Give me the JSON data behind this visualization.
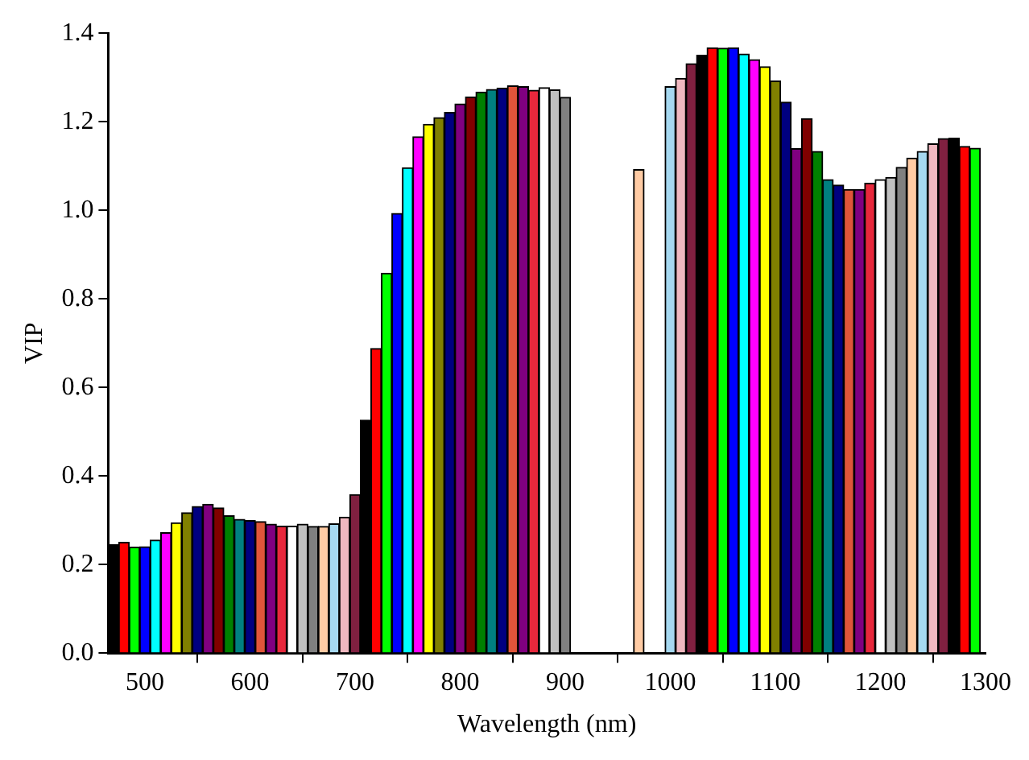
{
  "chart_data": {
    "type": "bar",
    "xlabel": "Wavelength (nm)",
    "ylabel": "VIP",
    "x": [
      470,
      480,
      490,
      500,
      510,
      520,
      530,
      540,
      550,
      560,
      570,
      580,
      590,
      600,
      610,
      620,
      630,
      640,
      650,
      660,
      670,
      680,
      690,
      700,
      710,
      720,
      730,
      740,
      750,
      760,
      770,
      780,
      790,
      800,
      810,
      820,
      830,
      840,
      850,
      860,
      870,
      880,
      890,
      900,
      970,
      1000,
      1010,
      1020,
      1030,
      1040,
      1050,
      1060,
      1070,
      1080,
      1090,
      1100,
      1110,
      1120,
      1130,
      1140,
      1150,
      1160,
      1170,
      1180,
      1190,
      1200,
      1210,
      1220,
      1230,
      1240,
      1250,
      1260,
      1270,
      1280,
      1290
    ],
    "values": [
      0.245,
      0.25,
      0.239,
      0.24,
      0.255,
      0.272,
      0.294,
      0.317,
      0.331,
      0.336,
      0.328,
      0.31,
      0.302,
      0.299,
      0.297,
      0.291,
      0.287,
      0.287,
      0.291,
      0.286,
      0.286,
      0.292,
      0.307,
      0.358,
      0.526,
      0.688,
      0.858,
      0.993,
      1.096,
      1.166,
      1.194,
      1.209,
      1.221,
      1.24,
      1.256,
      1.267,
      1.273,
      1.276,
      1.281,
      1.279,
      1.271,
      1.277,
      1.272,
      1.255,
      1.092,
      1.279,
      1.298,
      1.331,
      1.35,
      1.367,
      1.366,
      1.367,
      1.353,
      1.34,
      1.324,
      1.292,
      1.244,
      1.139,
      1.207,
      1.133,
      1.069,
      1.057,
      1.047,
      1.047,
      1.061,
      1.069,
      1.074,
      1.097,
      1.118,
      1.133,
      1.15,
      1.162,
      1.163,
      1.144,
      1.14
    ],
    "colors": [
      "#000000",
      "#ff0000",
      "#00ff00",
      "#0000ff",
      "#00ffff",
      "#ff00ff",
      "#ffff00",
      "#808000",
      "#000080",
      "#800080",
      "#800000",
      "#008000",
      "#008080",
      "#000080",
      "#e0553a",
      "#800080",
      "#e8283c",
      "#ffffff",
      "#c0c0c0",
      "#808080",
      "#ffcba4",
      "#a6d8f0",
      "#f0b8c0",
      "#802040",
      "#000000",
      "#ff0000",
      "#00ff00",
      "#0000ff",
      "#00ffff",
      "#ff00ff",
      "#ffff00",
      "#808000",
      "#000080",
      "#800080",
      "#800000",
      "#008000",
      "#008080",
      "#000080",
      "#e0553a",
      "#800080",
      "#e8283c",
      "#ffffff",
      "#c0c0c0",
      "#808080",
      "#ffcba4",
      "#a6d8f0",
      "#f0b8c0",
      "#802040",
      "#000000",
      "#ff0000",
      "#00ff00",
      "#0000ff",
      "#00ffff",
      "#ff00ff",
      "#ffff00",
      "#808000",
      "#000080",
      "#800080",
      "#800000",
      "#008000",
      "#008080",
      "#000080",
      "#e0553a",
      "#800080",
      "#e8283c",
      "#ffffff",
      "#c0c0c0",
      "#808080",
      "#ffcba4",
      "#a6d8f0",
      "#f0b8c0",
      "#802040",
      "#000000",
      "#ff0000",
      "#00ff00"
    ],
    "xlim": [
      465,
      1300
    ],
    "xticks": [
      500,
      600,
      700,
      800,
      900,
      1000,
      1100,
      1200,
      1300
    ],
    "ylim": [
      0,
      1.4
    ],
    "yticks": [
      {
        "value": 0,
        "label": "0.0"
      },
      {
        "value": 0.2,
        "label": "0.2"
      },
      {
        "value": 0.4,
        "label": "0.4"
      },
      {
        "value": 0.6,
        "label": "0.6"
      },
      {
        "value": 0.8,
        "label": "0.8"
      },
      {
        "value": 1,
        "label": "1.0"
      },
      {
        "value": 1.2,
        "label": "1.2"
      },
      {
        "value": 1.4,
        "label": "1.4"
      }
    ],
    "grid": false,
    "legend": false
  }
}
